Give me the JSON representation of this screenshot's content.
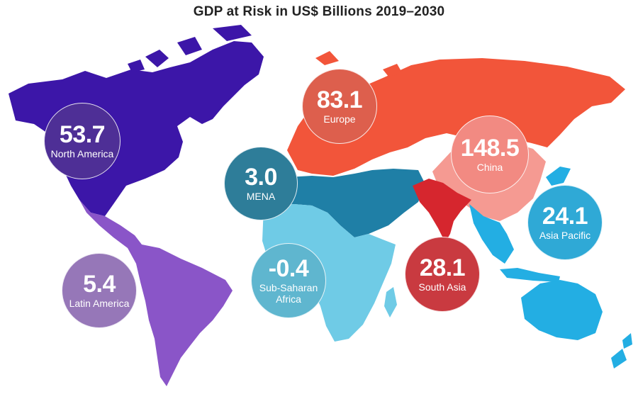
{
  "title": "GDP at Risk in US$ Billions 2019–2030",
  "colors": {
    "north_america": "#3c16a8",
    "latin_america": "#8a55c8",
    "europe": "#f2553a",
    "china": "#f59a92",
    "mena": "#1f7fa6",
    "sub_saharan_africa": "#6fcbe6",
    "south_asia": "#d6262e",
    "asia_pacific": "#23aee3"
  },
  "regions": [
    {
      "id": "north-america",
      "label": "North America",
      "value": "53.7",
      "bubble_color": "#4e2f96"
    },
    {
      "id": "latin-america",
      "label": "Latin America",
      "value": "5.4",
      "bubble_color": "#9677b8"
    },
    {
      "id": "europe",
      "label": "Europe",
      "value": "83.1",
      "bubble_color": "#dd5f4d"
    },
    {
      "id": "china",
      "label": "China",
      "value": "148.5",
      "bubble_color": "#f28a82"
    },
    {
      "id": "mena",
      "label": "MENA",
      "value": "3.0",
      "bubble_color": "#2e7d99"
    },
    {
      "id": "sub-saharan-africa",
      "label": "Sub-Saharan Africa",
      "value": "-0.4",
      "bubble_color": "#5fb6cf"
    },
    {
      "id": "south-asia",
      "label": "South Asia",
      "value": "28.1",
      "bubble_color": "#c93a40"
    },
    {
      "id": "asia-pacific",
      "label": "Asia Pacific",
      "value": "24.1",
      "bubble_color": "#2fa9d6"
    }
  ]
}
